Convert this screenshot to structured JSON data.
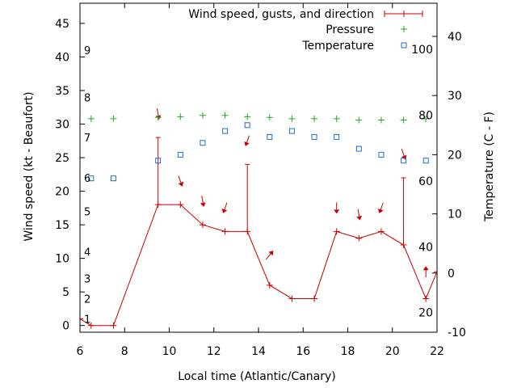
{
  "chart_data": {
    "type": "line",
    "xlabel": "Local time (Atlantic/Canary)",
    "ylabel_left": "Wind speed (kt - Beaufort)",
    "ylabel_right": "Temperature (C - F)",
    "xlim": [
      6,
      22
    ],
    "ylim_left": [
      -1,
      48
    ],
    "ylim_right": [
      -10,
      45.6
    ],
    "x_ticks": [
      6,
      8,
      10,
      12,
      14,
      16,
      18,
      20,
      22
    ],
    "y_left_ticks": [
      0,
      5,
      10,
      15,
      20,
      25,
      30,
      35,
      40,
      45
    ],
    "y_right_ticks": [
      -10,
      0,
      10,
      20,
      30,
      40
    ],
    "beaufort_labels": [
      {
        "label": "1",
        "kt": 1
      },
      {
        "label": "2",
        "kt": 4
      },
      {
        "label": "3",
        "kt": 7
      },
      {
        "label": "4",
        "kt": 11
      },
      {
        "label": "5",
        "kt": 17
      },
      {
        "label": "6",
        "kt": 22
      },
      {
        "label": "7",
        "kt": 28
      },
      {
        "label": "8",
        "kt": 34
      },
      {
        "label": "9",
        "kt": 41
      }
    ],
    "fahrenheit_labels": [
      {
        "label": "20",
        "c": -6.67
      },
      {
        "label": "40",
        "c": 4.44
      },
      {
        "label": "60",
        "c": 15.56
      },
      {
        "label": "80",
        "c": 26.67
      },
      {
        "label": "100",
        "c": 37.78
      }
    ],
    "legend": [
      {
        "label": "Wind speed, gusts, and direction",
        "color": "#cc0000",
        "style": "line-errorbar"
      },
      {
        "label": "Pressure",
        "color": "#22aa22",
        "style": "plus"
      },
      {
        "label": "Temperature",
        "color": "#1a6fcc",
        "style": "square"
      }
    ],
    "legend_position": "top-right",
    "colors": {
      "wind": "#cc0000",
      "pressure": "#22aa22",
      "temperature": "#1a6fcc"
    },
    "series": [
      {
        "name": "Wind speed, gusts, and direction",
        "points": [
          {
            "x": 6.0,
            "y": 1
          },
          {
            "x": 6.5,
            "y": 0
          },
          {
            "x": 7.5,
            "y": 0
          },
          {
            "x": 9.5,
            "y": 18,
            "gust": 28
          },
          {
            "x": 10.5,
            "y": 18
          },
          {
            "x": 11.5,
            "y": 15
          },
          {
            "x": 12.5,
            "y": 14
          },
          {
            "x": 13.5,
            "y": 14,
            "gust": 24
          },
          {
            "x": 14.5,
            "y": 6
          },
          {
            "x": 15.5,
            "y": 4
          },
          {
            "x": 16.5,
            "y": 4
          },
          {
            "x": 17.5,
            "y": 14
          },
          {
            "x": 18.5,
            "y": 13
          },
          {
            "x": 19.5,
            "y": 14
          },
          {
            "x": 20.5,
            "y": 12,
            "gust": 22
          },
          {
            "x": 21.5,
            "y": 4
          },
          {
            "x": 22.0,
            "y": 8
          }
        ]
      },
      {
        "name": "Pressure",
        "points": [
          {
            "x": 6.5,
            "y": 30.8
          },
          {
            "x": 7.5,
            "y": 30.8
          },
          {
            "x": 9.5,
            "y": 31.0
          },
          {
            "x": 10.5,
            "y": 31.1
          },
          {
            "x": 11.5,
            "y": 31.3
          },
          {
            "x": 12.5,
            "y": 31.3
          },
          {
            "x": 13.5,
            "y": 31.1
          },
          {
            "x": 14.5,
            "y": 31.0
          },
          {
            "x": 15.5,
            "y": 30.8
          },
          {
            "x": 16.5,
            "y": 30.8
          },
          {
            "x": 17.5,
            "y": 30.8
          },
          {
            "x": 18.5,
            "y": 30.6
          },
          {
            "x": 19.5,
            "y": 30.6
          },
          {
            "x": 20.5,
            "y": 30.6
          },
          {
            "x": 21.5,
            "y": 30.8
          }
        ]
      },
      {
        "name": "Temperature",
        "points": [
          {
            "x": 6.5,
            "y": 16
          },
          {
            "x": 7.5,
            "y": 16
          },
          {
            "x": 9.5,
            "y": 19
          },
          {
            "x": 10.5,
            "y": 20
          },
          {
            "x": 11.5,
            "y": 22
          },
          {
            "x": 12.5,
            "y": 24
          },
          {
            "x": 13.5,
            "y": 25
          },
          {
            "x": 14.5,
            "y": 23
          },
          {
            "x": 15.5,
            "y": 24
          },
          {
            "x": 16.5,
            "y": 23
          },
          {
            "x": 17.5,
            "y": 23
          },
          {
            "x": 18.5,
            "y": 21
          },
          {
            "x": 19.5,
            "y": 20
          },
          {
            "x": 20.5,
            "y": 19
          },
          {
            "x": 21.5,
            "y": 19
          }
        ]
      }
    ],
    "wind_direction_arrows": [
      {
        "x": 9.5,
        "y": 31.5,
        "angle": 350
      },
      {
        "x": 10.5,
        "y": 21.5,
        "angle": 340
      },
      {
        "x": 11.5,
        "y": 18.5,
        "angle": 350
      },
      {
        "x": 12.5,
        "y": 17.5,
        "angle": 20
      },
      {
        "x": 13.5,
        "y": 27.5,
        "angle": 20
      },
      {
        "x": 14.5,
        "y": 10.5,
        "angle": 220
      },
      {
        "x": 17.5,
        "y": 17.5,
        "angle": 0
      },
      {
        "x": 18.5,
        "y": 16.5,
        "angle": 350
      },
      {
        "x": 19.5,
        "y": 17.5,
        "angle": 20
      },
      {
        "x": 20.5,
        "y": 25.5,
        "angle": 340
      },
      {
        "x": 21.5,
        "y": 8.0,
        "angle": 180
      }
    ]
  }
}
